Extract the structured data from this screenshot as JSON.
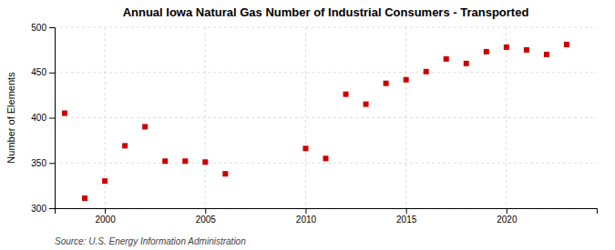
{
  "chart_data": {
    "type": "scatter",
    "title": "Annual Iowa Natural Gas Number of Industrial Consumers - Transported",
    "ylabel": "Number of Elements",
    "source": "Source: U.S. Energy Information Administration",
    "x": [
      1998,
      1999,
      2000,
      2001,
      2002,
      2003,
      2004,
      2005,
      2006,
      2010,
      2011,
      2012,
      2013,
      2014,
      2015,
      2016,
      2017,
      2018,
      2019,
      2020,
      2021,
      2022,
      2023
    ],
    "values": [
      405,
      311,
      330,
      369,
      390,
      352,
      352,
      351,
      338,
      366,
      355,
      426,
      415,
      438,
      442,
      451,
      465,
      460,
      473,
      478,
      475,
      470,
      481
    ],
    "color": "#cc0000",
    "marker": "square",
    "xlim": [
      1997.5,
      2024.5
    ],
    "xticks": [
      2000,
      2005,
      2010,
      2015,
      2020
    ],
    "ylim": [
      300,
      500
    ],
    "yticks": [
      300,
      350,
      400,
      450,
      500
    ],
    "grid": true
  }
}
